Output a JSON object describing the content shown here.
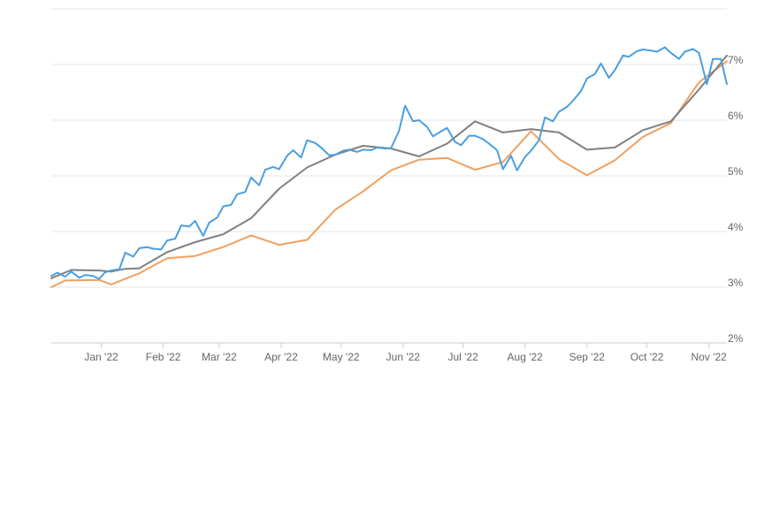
{
  "chart_data": {
    "type": "line",
    "title": "",
    "xlabel": "",
    "ylabel": "",
    "ylim": [
      2,
      8
    ],
    "y_ticks": [
      "2%",
      "3%",
      "4%",
      "5%",
      "6%",
      "7%"
    ],
    "x_ticks": [
      "Jan '22",
      "Feb '22",
      "Mar '22",
      "Apr '22",
      "May '22",
      "Jun '22",
      "Jul '22",
      "Aug '22",
      "Sep '22",
      "Oct '22",
      "Nov '22"
    ],
    "xlim": [
      "2021-12-07",
      "2022-11-10"
    ],
    "grid": true,
    "legend": "none",
    "series": [
      {
        "color": "#4a9ee0",
        "x": [
          "2021-12-07",
          "2021-12-10",
          "2021-12-14",
          "2021-12-17",
          "2021-12-21",
          "2021-12-24",
          "2021-12-28",
          "2021-12-31",
          "2022-01-03",
          "2022-01-06",
          "2022-01-10",
          "2022-01-13",
          "2022-01-17",
          "2022-01-20",
          "2022-01-24",
          "2022-01-27",
          "2022-01-31",
          "2022-02-03",
          "2022-02-07",
          "2022-02-10",
          "2022-02-14",
          "2022-02-17",
          "2022-02-21",
          "2022-02-24",
          "2022-02-28",
          "2022-03-03",
          "2022-03-07",
          "2022-03-10",
          "2022-03-14",
          "2022-03-17",
          "2022-03-21",
          "2022-03-24",
          "2022-03-28",
          "2022-03-31",
          "2022-04-04",
          "2022-04-07",
          "2022-04-11",
          "2022-04-14",
          "2022-04-18",
          "2022-04-21",
          "2022-04-25",
          "2022-04-28",
          "2022-05-02",
          "2022-05-05",
          "2022-05-09",
          "2022-05-12",
          "2022-05-16",
          "2022-05-19",
          "2022-05-23",
          "2022-05-26",
          "2022-05-30",
          "2022-06-02",
          "2022-06-06",
          "2022-06-09",
          "2022-06-13",
          "2022-06-16",
          "2022-06-20",
          "2022-06-23",
          "2022-06-27",
          "2022-06-30",
          "2022-07-04",
          "2022-07-07",
          "2022-07-11",
          "2022-07-14",
          "2022-07-18",
          "2022-07-21",
          "2022-07-25",
          "2022-07-28",
          "2022-08-01",
          "2022-08-04",
          "2022-08-08",
          "2022-08-11",
          "2022-08-15",
          "2022-08-18",
          "2022-08-22",
          "2022-08-25",
          "2022-08-29",
          "2022-09-01",
          "2022-09-05",
          "2022-09-08",
          "2022-09-12",
          "2022-09-15",
          "2022-09-19",
          "2022-09-22",
          "2022-09-26",
          "2022-09-29",
          "2022-10-03",
          "2022-10-06",
          "2022-10-10",
          "2022-10-13",
          "2022-10-17",
          "2022-10-20",
          "2022-10-24",
          "2022-10-27",
          "2022-10-31",
          "2022-11-03",
          "2022-11-07",
          "2022-11-10"
        ],
        "y": [
          3.2,
          3.26,
          3.19,
          3.28,
          3.17,
          3.22,
          3.2,
          3.15,
          3.27,
          3.3,
          3.32,
          3.62,
          3.55,
          3.7,
          3.72,
          3.69,
          3.68,
          3.84,
          3.87,
          4.11,
          4.09,
          4.19,
          3.92,
          4.16,
          4.25,
          4.45,
          4.48,
          4.67,
          4.71,
          4.97,
          4.83,
          5.11,
          5.16,
          5.12,
          5.36,
          5.46,
          5.33,
          5.64,
          5.59,
          5.51,
          5.37,
          5.38,
          5.45,
          5.47,
          5.43,
          5.47,
          5.46,
          5.51,
          5.49,
          5.5,
          5.81,
          6.26,
          5.98,
          6.0,
          5.88,
          5.71,
          5.8,
          5.86,
          5.61,
          5.55,
          5.72,
          5.72,
          5.66,
          5.58,
          5.46,
          5.12,
          5.36,
          5.1,
          5.34,
          5.45,
          5.64,
          6.05,
          5.98,
          6.15,
          6.24,
          6.35,
          6.52,
          6.75,
          6.83,
          7.02,
          6.76,
          6.9,
          7.16,
          7.14,
          7.24,
          7.27,
          7.25,
          7.23,
          7.31,
          7.21,
          7.1,
          7.23,
          7.28,
          7.21,
          6.65,
          7.1,
          7.1,
          6.65
        ]
      },
      {
        "color": "#808080",
        "x": [
          "2021-12-07",
          "2021-12-17",
          "2021-12-31",
          "2022-01-06",
          "2022-01-13",
          "2022-01-20",
          "2022-02-03",
          "2022-02-17",
          "2022-03-03",
          "2022-03-17",
          "2022-03-31",
          "2022-04-14",
          "2022-04-28",
          "2022-05-12",
          "2022-05-26",
          "2022-06-09",
          "2022-06-23",
          "2022-07-07",
          "2022-07-21",
          "2022-08-04",
          "2022-08-18",
          "2022-09-01",
          "2022-09-15",
          "2022-09-29",
          "2022-10-13",
          "2022-10-27",
          "2022-11-10"
        ],
        "y": [
          3.16,
          3.31,
          3.3,
          3.28,
          3.33,
          3.34,
          3.63,
          3.81,
          3.95,
          4.24,
          4.77,
          5.15,
          5.38,
          5.54,
          5.49,
          5.35,
          5.58,
          5.98,
          5.78,
          5.84,
          5.78,
          5.47,
          5.51,
          5.82,
          5.98,
          6.55,
          7.16
        ]
      },
      {
        "color": "#f0a060",
        "x": [
          "2021-12-07",
          "2021-12-14",
          "2021-12-31",
          "2022-01-06",
          "2022-01-13",
          "2022-01-20",
          "2022-02-03",
          "2022-02-17",
          "2022-03-03",
          "2022-03-17",
          "2022-03-31",
          "2022-04-14",
          "2022-04-28",
          "2022-05-12",
          "2022-05-26",
          "2022-06-09",
          "2022-06-23",
          "2022-07-07",
          "2022-07-21",
          "2022-08-04",
          "2022-08-18",
          "2022-09-01",
          "2022-09-15",
          "2022-09-29",
          "2022-10-13",
          "2022-10-27",
          "2022-11-10"
        ],
        "y": [
          3.0,
          3.12,
          3.13,
          3.05,
          3.15,
          3.25,
          3.52,
          3.56,
          3.72,
          3.93,
          3.76,
          3.85,
          4.39,
          4.72,
          5.1,
          5.29,
          5.32,
          5.11,
          5.25,
          5.8,
          5.3,
          5.01,
          5.28,
          5.7,
          5.95,
          6.68,
          7.06
        ]
      }
    ]
  }
}
